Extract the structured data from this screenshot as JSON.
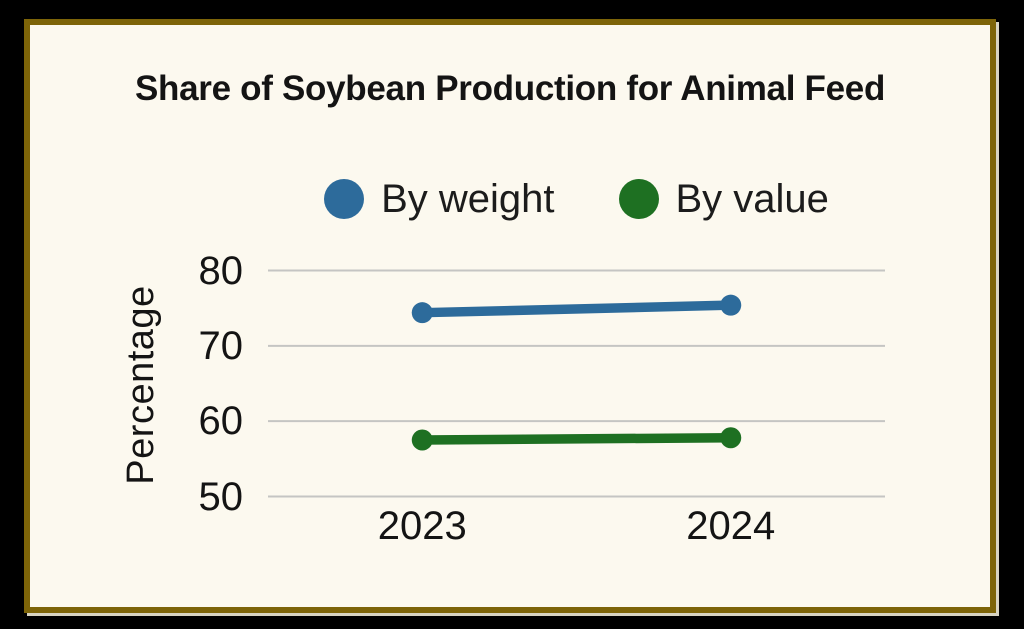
{
  "chart_data": {
    "type": "line",
    "title": "Share of Soybean Production for Animal Feed",
    "xlabel": "",
    "ylabel": "Percentage",
    "categories": [
      "2023",
      "2024"
    ],
    "series": [
      {
        "name": "By weight",
        "color": "#2d6b9b",
        "values": [
          74.4,
          75.4
        ]
      },
      {
        "name": "By value",
        "color": "#1e7022",
        "values": [
          57.5,
          57.8
        ]
      }
    ],
    "yticks": [
      80,
      70,
      60,
      50
    ],
    "ylim": [
      50,
      80
    ],
    "grid": "horizontal",
    "legend_position": "top-center"
  },
  "colors": {
    "outer_background": "#000000",
    "frame_border": "#7d6408",
    "panel_background": "#fcf9ef",
    "gridline": "#c5c5c3",
    "text": "#141414"
  }
}
